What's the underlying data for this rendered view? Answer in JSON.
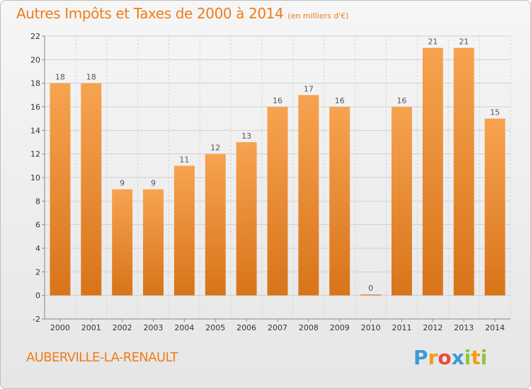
{
  "title": "Autres Impôts et Taxes de 2000 à 2014",
  "unit_note": "(en milliers d'€)",
  "commune": "AUBERVILLE-LA-RENAULT",
  "logo": {
    "text": "Proxiti",
    "letters": [
      {
        "ch": "P",
        "color": "#3b9ad9"
      },
      {
        "ch": "r",
        "color": "#f39c12"
      },
      {
        "ch": "o",
        "color": "#e74c3c"
      },
      {
        "ch": "x",
        "color": "#3b9ad9"
      },
      {
        "ch": "i",
        "color": "#8cc63f"
      },
      {
        "ch": "t",
        "color": "#f39c12"
      },
      {
        "ch": "i",
        "color": "#8cc63f"
      }
    ]
  },
  "colors": {
    "bar_top": "#f7a350",
    "bar_bottom": "#d8741a",
    "grid": "#cfcfcf",
    "title": "#ee7d18"
  },
  "chart_data": {
    "type": "bar",
    "title": "Autres Impôts et Taxes de 2000 à 2014",
    "categories": [
      "2000",
      "2001",
      "2002",
      "2003",
      "2004",
      "2005",
      "2006",
      "2007",
      "2008",
      "2009",
      "2010",
      "2011",
      "2012",
      "2013",
      "2014"
    ],
    "values": [
      18,
      18,
      9,
      9,
      11,
      12,
      13,
      16,
      17,
      16,
      0,
      16,
      21,
      21,
      15
    ],
    "ylim": [
      -2,
      22
    ],
    "yticks": [
      -2,
      0,
      2,
      4,
      6,
      8,
      10,
      12,
      14,
      16,
      18,
      20,
      22
    ],
    "grid": true,
    "xlabel": "",
    "ylabel": ""
  }
}
